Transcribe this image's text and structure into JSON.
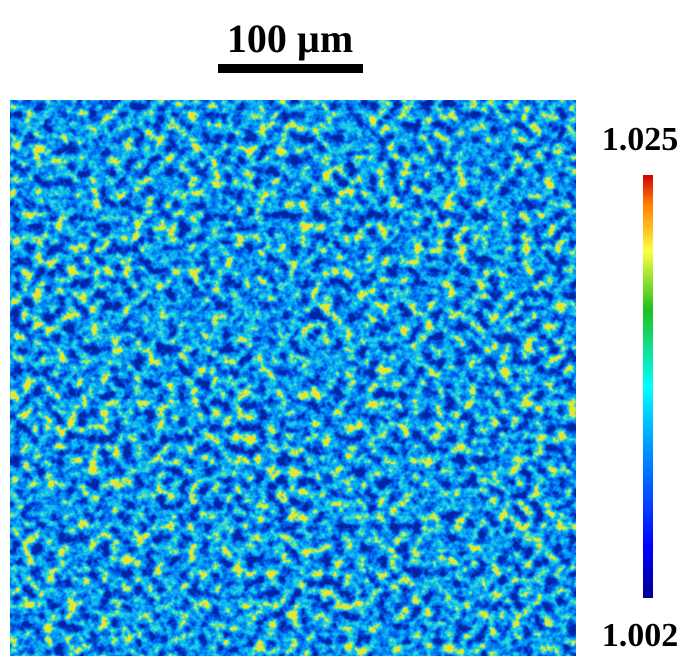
{
  "scale_bar": {
    "label": "100 µm"
  },
  "colorbar": {
    "max_label": "1.025",
    "min_label": "1.002"
  }
}
